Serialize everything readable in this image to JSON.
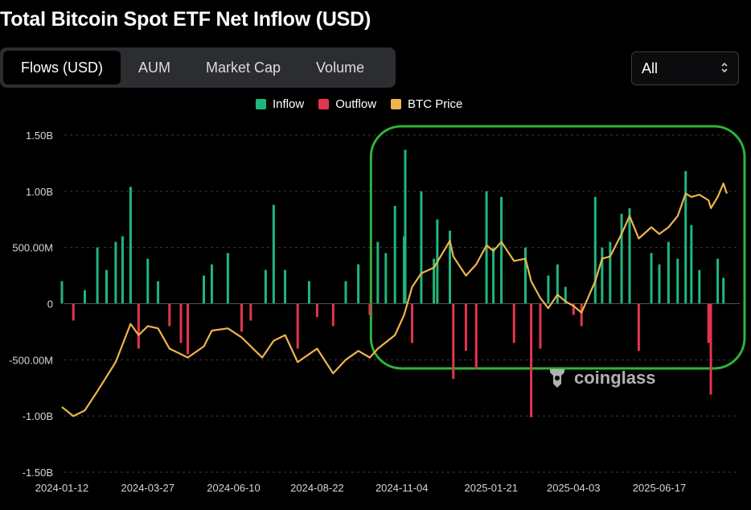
{
  "title": "Total Bitcoin Spot ETF Net Inflow (USD)",
  "tabs": [
    {
      "label": "Flows (USD)",
      "active": true
    },
    {
      "label": "AUM",
      "active": false
    },
    {
      "label": "Market Cap",
      "active": false
    },
    {
      "label": "Volume",
      "active": false
    }
  ],
  "range_select": {
    "value": "All"
  },
  "colors": {
    "inflow": "#1fb77d",
    "outflow": "#e4354f",
    "price": "#f0b44c",
    "highlight": "#2fb33a"
  },
  "watermark": "coinglass",
  "chart_data": {
    "type": "bar",
    "title": "Total Bitcoin Spot ETF Net Inflow (USD)",
    "legend": [
      "Inflow",
      "Outflow",
      "BTC Price"
    ],
    "legend_position": "top-center",
    "y_ticks": [
      "1.50B",
      "1.00B",
      "500.00M",
      "0",
      "-500.00M",
      "-1.00B",
      "-1.50B"
    ],
    "ylim": [
      -1.5,
      1.5
    ],
    "y_unit": "B USD",
    "x_ticks": [
      "2024-01-12",
      "2024-03-27",
      "2024-06-10",
      "2024-08-22",
      "2024-11-04",
      "2025-01-21",
      "2025-04-03",
      "2025-06-17"
    ],
    "grid": "horizontal-dashed",
    "annotation": "green rounded box highlighting late-2024 to 2025 period",
    "flows": [
      {
        "date": "2024-01-12",
        "value": 0.2
      },
      {
        "date": "2024-01-22",
        "value": -0.15
      },
      {
        "date": "2024-02-01",
        "value": 0.12
      },
      {
        "date": "2024-02-12",
        "value": 0.5
      },
      {
        "date": "2024-02-20",
        "value": 0.3
      },
      {
        "date": "2024-02-28",
        "value": 0.55
      },
      {
        "date": "2024-03-05",
        "value": 0.6
      },
      {
        "date": "2024-03-12",
        "value": 1.04
      },
      {
        "date": "2024-03-19",
        "value": -0.4
      },
      {
        "date": "2024-03-27",
        "value": 0.4
      },
      {
        "date": "2024-04-05",
        "value": 0.2
      },
      {
        "date": "2024-04-15",
        "value": -0.2
      },
      {
        "date": "2024-04-25",
        "value": -0.35
      },
      {
        "date": "2024-05-01",
        "value": -0.45
      },
      {
        "date": "2024-05-15",
        "value": 0.25
      },
      {
        "date": "2024-05-22",
        "value": 0.35
      },
      {
        "date": "2024-06-05",
        "value": 0.45
      },
      {
        "date": "2024-06-17",
        "value": -0.25
      },
      {
        "date": "2024-06-25",
        "value": -0.15
      },
      {
        "date": "2024-07-08",
        "value": 0.3
      },
      {
        "date": "2024-07-15",
        "value": 0.88
      },
      {
        "date": "2024-07-25",
        "value": 0.3
      },
      {
        "date": "2024-08-05",
        "value": -0.4
      },
      {
        "date": "2024-08-15",
        "value": 0.2
      },
      {
        "date": "2024-08-22",
        "value": -0.12
      },
      {
        "date": "2024-09-05",
        "value": -0.2
      },
      {
        "date": "2024-09-16",
        "value": 0.2
      },
      {
        "date": "2024-09-27",
        "value": 0.35
      },
      {
        "date": "2024-10-07",
        "value": -0.1
      },
      {
        "date": "2024-10-14",
        "value": 0.55
      },
      {
        "date": "2024-10-21",
        "value": 0.45
      },
      {
        "date": "2024-10-29",
        "value": 0.87
      },
      {
        "date": "2024-11-06",
        "value": 0.6
      },
      {
        "date": "2024-11-07",
        "value": 1.37
      },
      {
        "date": "2024-11-13",
        "value": -0.35
      },
      {
        "date": "2024-11-21",
        "value": 1.0
      },
      {
        "date": "2024-12-02",
        "value": 0.4
      },
      {
        "date": "2024-12-05",
        "value": 0.75
      },
      {
        "date": "2024-12-16",
        "value": 0.65
      },
      {
        "date": "2024-12-19",
        "value": -0.67
      },
      {
        "date": "2024-12-30",
        "value": -0.42
      },
      {
        "date": "2025-01-08",
        "value": -0.58
      },
      {
        "date": "2025-01-17",
        "value": 1.0
      },
      {
        "date": "2025-01-23",
        "value": 0.5
      },
      {
        "date": "2025-01-30",
        "value": 0.95
      },
      {
        "date": "2025-02-10",
        "value": -0.35
      },
      {
        "date": "2025-02-20",
        "value": 0.5
      },
      {
        "date": "2025-02-25",
        "value": -1.01
      },
      {
        "date": "2025-03-05",
        "value": -0.4
      },
      {
        "date": "2025-03-12",
        "value": 0.25
      },
      {
        "date": "2025-03-20",
        "value": 0.35
      },
      {
        "date": "2025-03-27",
        "value": 0.15
      },
      {
        "date": "2025-04-03",
        "value": -0.1
      },
      {
        "date": "2025-04-10",
        "value": -0.2
      },
      {
        "date": "2025-04-22",
        "value": 0.95
      },
      {
        "date": "2025-04-28",
        "value": 0.5
      },
      {
        "date": "2025-05-05",
        "value": 0.55
      },
      {
        "date": "2025-05-15",
        "value": 0.8
      },
      {
        "date": "2025-05-22",
        "value": 0.85
      },
      {
        "date": "2025-05-30",
        "value": -0.42
      },
      {
        "date": "2025-06-10",
        "value": 0.45
      },
      {
        "date": "2025-06-17",
        "value": 0.35
      },
      {
        "date": "2025-06-25",
        "value": 0.55
      },
      {
        "date": "2025-07-03",
        "value": 0.4
      },
      {
        "date": "2025-07-10",
        "value": 1.18
      },
      {
        "date": "2025-07-15",
        "value": 0.7
      },
      {
        "date": "2025-07-22",
        "value": 0.3
      },
      {
        "date": "2025-07-30",
        "value": -0.35
      },
      {
        "date": "2025-08-01",
        "value": -0.81
      },
      {
        "date": "2025-08-07",
        "value": 0.4
      },
      {
        "date": "2025-08-12",
        "value": 0.23
      }
    ],
    "btc_price_line": [
      {
        "date": "2024-01-12",
        "value": -0.92
      },
      {
        "date": "2024-01-22",
        "value": -1.0
      },
      {
        "date": "2024-02-01",
        "value": -0.95
      },
      {
        "date": "2024-02-12",
        "value": -0.78
      },
      {
        "date": "2024-02-28",
        "value": -0.52
      },
      {
        "date": "2024-03-12",
        "value": -0.18
      },
      {
        "date": "2024-03-19",
        "value": -0.28
      },
      {
        "date": "2024-03-27",
        "value": -0.2
      },
      {
        "date": "2024-04-05",
        "value": -0.22
      },
      {
        "date": "2024-04-15",
        "value": -0.4
      },
      {
        "date": "2024-05-01",
        "value": -0.48
      },
      {
        "date": "2024-05-15",
        "value": -0.38
      },
      {
        "date": "2024-05-22",
        "value": -0.24
      },
      {
        "date": "2024-06-05",
        "value": -0.22
      },
      {
        "date": "2024-06-17",
        "value": -0.3
      },
      {
        "date": "2024-07-05",
        "value": -0.48
      },
      {
        "date": "2024-07-15",
        "value": -0.33
      },
      {
        "date": "2024-07-25",
        "value": -0.28
      },
      {
        "date": "2024-08-05",
        "value": -0.52
      },
      {
        "date": "2024-08-22",
        "value": -0.4
      },
      {
        "date": "2024-09-05",
        "value": -0.62
      },
      {
        "date": "2024-09-16",
        "value": -0.5
      },
      {
        "date": "2024-09-27",
        "value": -0.42
      },
      {
        "date": "2024-10-07",
        "value": -0.48
      },
      {
        "date": "2024-10-14",
        "value": -0.4
      },
      {
        "date": "2024-10-29",
        "value": -0.28
      },
      {
        "date": "2024-11-06",
        "value": -0.1
      },
      {
        "date": "2024-11-13",
        "value": 0.15
      },
      {
        "date": "2024-11-21",
        "value": 0.27
      },
      {
        "date": "2024-12-02",
        "value": 0.32
      },
      {
        "date": "2024-12-16",
        "value": 0.56
      },
      {
        "date": "2024-12-19",
        "value": 0.42
      },
      {
        "date": "2024-12-30",
        "value": 0.25
      },
      {
        "date": "2025-01-08",
        "value": 0.35
      },
      {
        "date": "2025-01-17",
        "value": 0.52
      },
      {
        "date": "2025-01-23",
        "value": 0.47
      },
      {
        "date": "2025-01-30",
        "value": 0.55
      },
      {
        "date": "2025-02-10",
        "value": 0.38
      },
      {
        "date": "2025-02-20",
        "value": 0.4
      },
      {
        "date": "2025-02-25",
        "value": 0.2
      },
      {
        "date": "2025-03-05",
        "value": 0.05
      },
      {
        "date": "2025-03-12",
        "value": -0.04
      },
      {
        "date": "2025-03-20",
        "value": 0.08
      },
      {
        "date": "2025-03-27",
        "value": 0.02
      },
      {
        "date": "2025-04-03",
        "value": -0.02
      },
      {
        "date": "2025-04-10",
        "value": -0.08
      },
      {
        "date": "2025-04-22",
        "value": 0.2
      },
      {
        "date": "2025-04-28",
        "value": 0.4
      },
      {
        "date": "2025-05-05",
        "value": 0.42
      },
      {
        "date": "2025-05-15",
        "value": 0.62
      },
      {
        "date": "2025-05-22",
        "value": 0.78
      },
      {
        "date": "2025-05-30",
        "value": 0.58
      },
      {
        "date": "2025-06-10",
        "value": 0.68
      },
      {
        "date": "2025-06-17",
        "value": 0.62
      },
      {
        "date": "2025-06-25",
        "value": 0.68
      },
      {
        "date": "2025-07-03",
        "value": 0.78
      },
      {
        "date": "2025-07-10",
        "value": 0.98
      },
      {
        "date": "2025-07-15",
        "value": 0.95
      },
      {
        "date": "2025-07-22",
        "value": 0.97
      },
      {
        "date": "2025-07-30",
        "value": 0.92
      },
      {
        "date": "2025-08-01",
        "value": 0.85
      },
      {
        "date": "2025-08-07",
        "value": 0.95
      },
      {
        "date": "2025-08-12",
        "value": 1.07
      },
      {
        "date": "2025-08-15",
        "value": 0.98
      }
    ]
  }
}
